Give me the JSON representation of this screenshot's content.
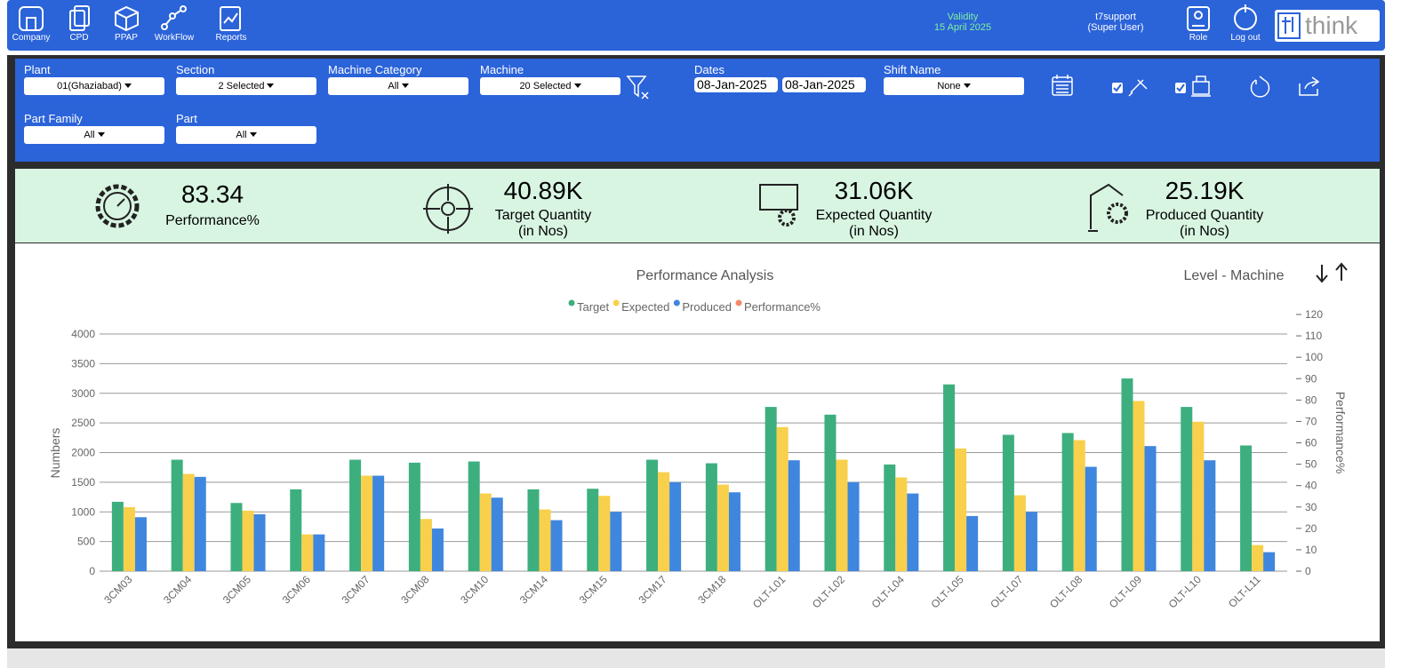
{
  "nav": {
    "items": [
      "Company",
      "CPD",
      "PPAP",
      "WorkFlow",
      "Reports"
    ],
    "validity": {
      "label": "Validity",
      "date": "15 April 2025"
    },
    "user": {
      "name": "t7support",
      "role": "(Super User)"
    },
    "actions": [
      "Role",
      "Log out"
    ],
    "logo": "think"
  },
  "filters": [
    {
      "label": "Plant",
      "value": "01(Ghaziabad)"
    },
    {
      "label": "Section",
      "value": "2 Selected"
    },
    {
      "label": "Machine Category",
      "value": "All"
    },
    {
      "label": "Machine",
      "value": "20 Selected"
    },
    {
      "label": "Dates",
      "from": "08-Jan-2025",
      "to": "08-Jan-2025"
    },
    {
      "label": "Shift Name",
      "value": "None"
    },
    {
      "label": "Part Family",
      "value": "All"
    },
    {
      "label": "Part",
      "value": "All"
    }
  ],
  "kpis": [
    {
      "value": "83.34",
      "label": "Performance%"
    },
    {
      "value": "40.89K",
      "label": "Target Quantity",
      "unit": "(in Nos)"
    },
    {
      "value": "31.06K",
      "label": "Expected Quantity",
      "unit": "(in Nos)"
    },
    {
      "value": "25.19K",
      "label": "Produced Quantity",
      "unit": "(in Nos)"
    }
  ],
  "chart_data": {
    "type": "bar",
    "title": "Performance Analysis",
    "level": "Level - Machine",
    "ylabel": "Numbers",
    "y2label": "Performance%",
    "categories": [
      "3CM03",
      "3CM04",
      "3CM05",
      "3CM06",
      "3CM07",
      "3CM08",
      "3CM10",
      "3CM14",
      "3CM15",
      "3CM17",
      "3CM18",
      "OLT-L01",
      "OLT-L02",
      "OLT-L04",
      "OLT-L05",
      "OLT-L07",
      "OLT-L08",
      "OLT-L09",
      "OLT-L10",
      "OLT-L11"
    ],
    "series": [
      {
        "name": "Target",
        "color": "#3daf7e",
        "values": [
          1170,
          1880,
          1150,
          1380,
          1880,
          1830,
          1850,
          1380,
          1390,
          1880,
          1820,
          2770,
          2640,
          1800,
          3150,
          2300,
          2330,
          3250,
          2770,
          2120
        ]
      },
      {
        "name": "Expected",
        "color": "#f9d04b",
        "values": [
          1080,
          1640,
          1020,
          620,
          1610,
          880,
          1310,
          1040,
          1270,
          1670,
          1460,
          2430,
          1880,
          1580,
          2070,
          1280,
          2210,
          2870,
          2520,
          440
        ]
      },
      {
        "name": "Produced",
        "color": "#3f86de",
        "values": [
          910,
          1590,
          960,
          620,
          1610,
          720,
          1240,
          860,
          1000,
          1500,
          1330,
          1870,
          1500,
          1310,
          930,
          1000,
          1760,
          2110,
          1870,
          320
        ]
      },
      {
        "name": "Performance%",
        "color": "#f58a6b",
        "axis": "y2",
        "values": [
          null,
          null,
          null,
          null,
          null,
          null,
          null,
          null,
          null,
          null,
          null,
          null,
          null,
          null,
          null,
          null,
          null,
          null,
          null,
          null
        ]
      }
    ],
    "ylim": [
      0,
      4000
    ],
    "yticks": [
      0,
      500,
      1000,
      1500,
      2000,
      2500,
      3000,
      3500,
      4000
    ],
    "y2lim": [
      0,
      120
    ],
    "y2ticks": [
      0,
      10,
      20,
      30,
      40,
      50,
      60,
      70,
      80,
      90,
      100,
      110,
      120
    ],
    "grid": true
  }
}
